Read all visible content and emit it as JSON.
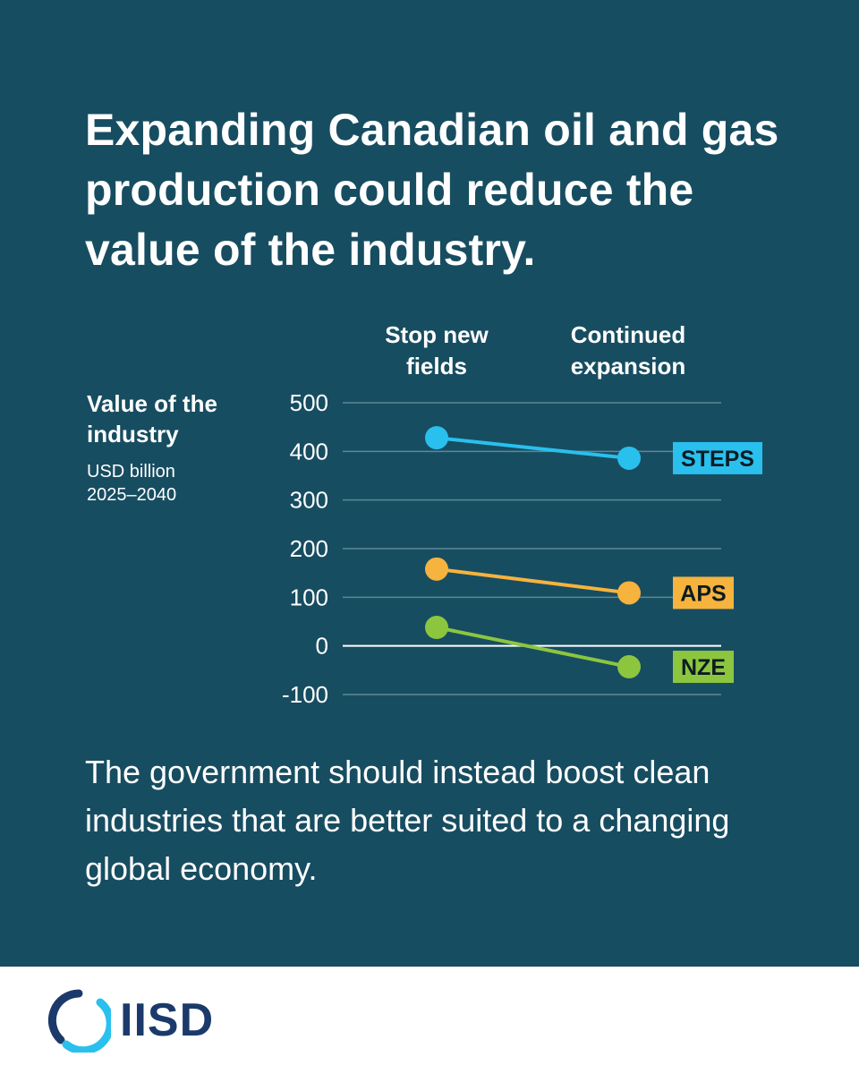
{
  "headline": "Expanding Canadian oil and gas production could reduce the value of the industry.",
  "footer_text": "The government should instead boost clean industries that are better suited to a changing global economy.",
  "logo": {
    "text": "IISD"
  },
  "colors": {
    "background": "#174d61",
    "steps": "#29c0ee",
    "aps": "#f6b33d",
    "nze": "#8cc63f",
    "gridline": "#5e8897",
    "logo": "#1b3a6b"
  },
  "chart_data": {
    "type": "line",
    "title": "Value of the industry",
    "ylabel": "Value of the industry",
    "yunits": "USD billion\n2025–2040",
    "categories": [
      "Stop new\nfields",
      "Continued\nexpansion"
    ],
    "ylim": [
      -100,
      500
    ],
    "yticks": [
      500,
      400,
      300,
      200,
      100,
      0,
      -100
    ],
    "ytick_labels": [
      "500",
      "400",
      "300",
      "200",
      "100",
      "0",
      "-100"
    ],
    "series": [
      {
        "name": "STEPS",
        "values": [
          428,
          386
        ]
      },
      {
        "name": "APS",
        "values": [
          158,
          109
        ]
      },
      {
        "name": "NZE",
        "values": [
          38,
          -43
        ]
      }
    ]
  }
}
